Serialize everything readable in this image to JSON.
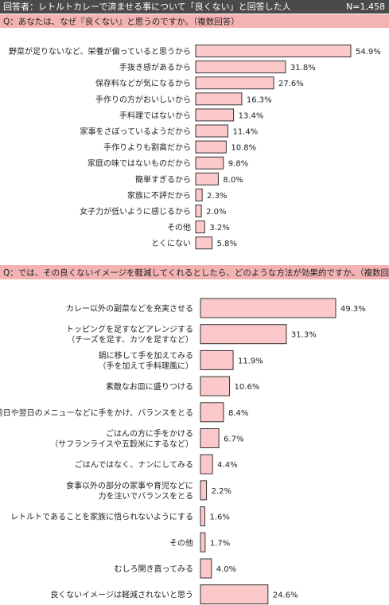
{
  "header": {
    "title": "回答者：レトルトカレーで済ませる事について「良くない」と回答した人",
    "n": "N=1,458"
  },
  "chart_data": [
    {
      "type": "bar",
      "orientation": "horizontal",
      "title": "Q：あなたは、なぜ『良くない』と思うのですか。（複数回答）",
      "color": "#fbc9c9",
      "categories": [
        "野菜が足りないなど、栄養が偏っていると思うから",
        "手抜き感があるから",
        "保存料などが気になるから",
        "手作りの方がおいしいから",
        "手料理ではないから",
        "家事をさぼっているようだから",
        "手作りよりも割高だから",
        "家庭の味ではないものだから",
        "簡単すぎるから",
        "家族に不評だから",
        "女子力が低いように感じるから",
        "その他",
        "とくにない"
      ],
      "values": [
        54.9,
        31.8,
        27.6,
        16.3,
        13.4,
        11.4,
        10.8,
        9.8,
        8.0,
        2.3,
        2.0,
        3.2,
        5.8
      ],
      "value_labels": [
        "54.9%",
        "31.8%",
        "27.6%",
        "16.3%",
        "13.4%",
        "11.4%",
        "10.8%",
        "9.8%",
        "8.0%",
        "2.3%",
        "2.0%",
        "3.2%",
        "5.8%"
      ]
    },
    {
      "type": "bar",
      "orientation": "horizontal",
      "title": "Q：では、その良くないイメージを軽減してくれるとしたら、どのような方法が効果的ですか。（複数回答）",
      "color": "#fbc9c9",
      "categories": [
        [
          "カレー以外の副菜などを充実させる"
        ],
        [
          "トッピングを足すなどアレンジする",
          "（チーズを足す、カツを足すなど）"
        ],
        [
          "鍋に移して手を加えてみる",
          "（手を加えて手料理風に）"
        ],
        [
          "素敵なお皿に盛りつける"
        ],
        [
          "前日や翌日のメニューなどに手をかけ、バランスをとる"
        ],
        [
          "ごはんの方に手をかける",
          "（サフランライスや五穀米にするなど）"
        ],
        [
          "ごはんではなく、ナンにしてみる"
        ],
        [
          "食事以外の部分の家事や育児などに",
          "力を注いでバランスをとる"
        ],
        [
          "レトルトであることを家族に悟られないようにする"
        ],
        [
          "その他"
        ],
        [
          "むしろ開き直ってみる"
        ],
        [
          "良くないイメージは軽減されないと思う"
        ]
      ],
      "values": [
        49.3,
        31.3,
        11.9,
        10.6,
        8.4,
        6.7,
        4.4,
        2.2,
        1.6,
        1.7,
        4.0,
        24.6
      ],
      "value_labels": [
        "49.3%",
        "31.3%",
        "11.9%",
        "10.6%",
        "8.4%",
        "6.7%",
        "4.4%",
        "2.2%",
        "1.6%",
        "1.7%",
        "4.0%",
        "24.6%"
      ]
    }
  ]
}
